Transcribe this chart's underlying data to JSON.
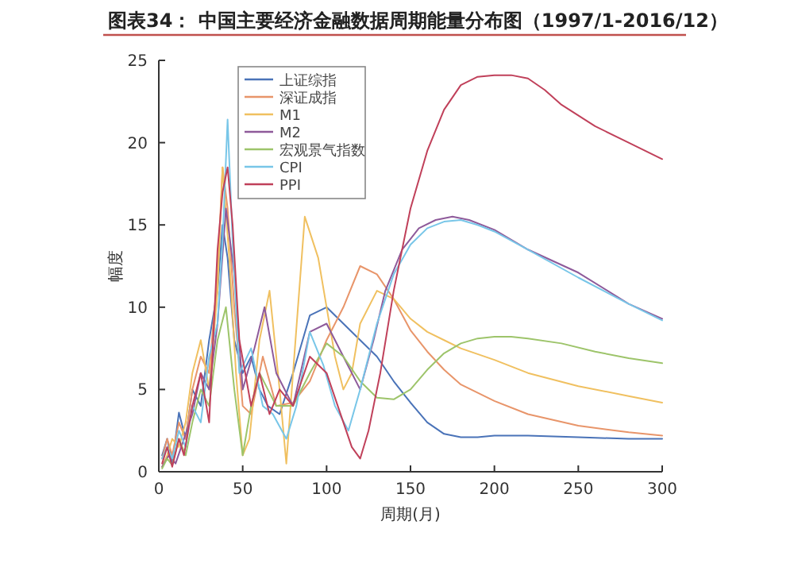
{
  "chart_data": {
    "type": "line",
    "title": "图表34：  中国主要经济金融数据周期能量分布图（1997/1-2016/12）",
    "xlabel": "周期(月)",
    "ylabel": "幅度",
    "xlim": [
      0,
      300
    ],
    "xticks": [
      0,
      50,
      100,
      150,
      200,
      250,
      300
    ],
    "ylim": [
      0,
      25
    ],
    "yticks": [
      0,
      5,
      10,
      15,
      20,
      25
    ],
    "grid": false,
    "legend": "top",
    "series": [
      {
        "name": "上证综指",
        "color": "#4a73b8",
        "x": [
          2,
          5,
          8,
          12,
          16,
          20,
          25,
          30,
          35,
          38,
          41,
          45,
          50,
          55,
          60,
          65,
          72,
          80,
          90,
          100,
          110,
          120,
          130,
          140,
          150,
          160,
          170,
          180,
          190,
          200,
          220,
          250,
          280,
          300
        ],
        "values": [
          1,
          2,
          0.5,
          3.6,
          2,
          5,
          4,
          8,
          11,
          15,
          13,
          8,
          6,
          7,
          5,
          4,
          3.5,
          6,
          9.5,
          10,
          9,
          8,
          7,
          5.5,
          4.2,
          3,
          2.3,
          2.1,
          2.1,
          2.2,
          2.2,
          2.1,
          2,
          2
        ]
      },
      {
        "name": "深证成指",
        "color": "#e8956a",
        "x": [
          2,
          5,
          8,
          12,
          16,
          20,
          25,
          30,
          35,
          38,
          41,
          45,
          50,
          55,
          62,
          70,
          80,
          90,
          100,
          110,
          120,
          130,
          140,
          150,
          160,
          170,
          180,
          200,
          220,
          250,
          280,
          300
        ],
        "values": [
          0.8,
          2,
          1,
          3,
          2,
          5,
          7,
          6,
          12,
          18.5,
          16,
          10,
          4,
          3.5,
          7,
          4,
          4.2,
          5.5,
          8,
          10,
          12.5,
          12,
          10.5,
          8.6,
          7.3,
          6.2,
          5.3,
          4.3,
          3.5,
          2.8,
          2.4,
          2.2
        ]
      },
      {
        "name": "M1",
        "color": "#f0c060",
        "x": [
          2,
          5,
          8,
          12,
          16,
          20,
          25,
          30,
          35,
          38,
          42,
          46,
          50,
          54,
          60,
          66,
          72,
          76,
          80,
          87,
          95,
          100,
          105,
          110,
          115,
          120,
          130,
          140,
          150,
          160,
          170,
          180,
          200,
          220,
          250,
          280,
          300
        ],
        "values": [
          0.3,
          1,
          2,
          1.5,
          3,
          6,
          8,
          5,
          11,
          18.5,
          13,
          6,
          1,
          2,
          8,
          11,
          5,
          0.5,
          6,
          15.5,
          13,
          10,
          7,
          5,
          6,
          9,
          11,
          10.5,
          9.3,
          8.5,
          8,
          7.5,
          6.8,
          6,
          5.2,
          4.6,
          4.2
        ]
      },
      {
        "name": "M2",
        "color": "#8e5a9a",
        "x": [
          2,
          6,
          10,
          15,
          20,
          25,
          30,
          35,
          40,
          45,
          50,
          57,
          63,
          70,
          80,
          90,
          100,
          110,
          120,
          128,
          135,
          145,
          155,
          165,
          175,
          185,
          200,
          220,
          250,
          280,
          300
        ],
        "values": [
          0.3,
          1,
          0.5,
          2,
          3.5,
          6,
          5,
          9,
          16,
          12,
          5,
          7.5,
          10,
          6,
          4,
          8.5,
          9,
          7,
          5,
          8,
          11,
          13.5,
          14.8,
          15.3,
          15.5,
          15.3,
          14.7,
          13.5,
          12.1,
          10.2,
          9.3
        ]
      },
      {
        "name": "宏观景气指数",
        "color": "#9dc46a",
        "x": [
          2,
          5,
          8,
          12,
          16,
          20,
          25,
          30,
          35,
          40,
          45,
          50,
          55,
          60,
          65,
          70,
          80,
          90,
          100,
          110,
          120,
          130,
          140,
          150,
          160,
          170,
          180,
          190,
          200,
          210,
          220,
          240,
          260,
          280,
          300
        ],
        "values": [
          0.2,
          0.8,
          0.4,
          2,
          1,
          3,
          5,
          4,
          8,
          10,
          5,
          1,
          4,
          6,
          5,
          4,
          4,
          6,
          7.8,
          7,
          5.5,
          4.5,
          4.4,
          5,
          6.2,
          7.2,
          7.8,
          8.1,
          8.2,
          8.2,
          8.1,
          7.8,
          7.3,
          6.9,
          6.6
        ]
      },
      {
        "name": "CPI",
        "color": "#78c6e8",
        "x": [
          2,
          5,
          8,
          12,
          16,
          20,
          25,
          30,
          35,
          38,
          41,
          44,
          48,
          55,
          62,
          68,
          76,
          82,
          90,
          98,
          105,
          113,
          120,
          130,
          140,
          150,
          160,
          170,
          180,
          190,
          200,
          220,
          250,
          280,
          300
        ],
        "values": [
          0.8,
          1.5,
          0.8,
          2.5,
          1.5,
          4,
          3,
          7,
          9,
          14,
          21.4,
          14,
          6,
          7.5,
          4,
          3.5,
          2,
          4,
          8.5,
          6.5,
          4,
          2.5,
          5,
          9,
          12,
          13.8,
          14.8,
          15.2,
          15.3,
          15,
          14.6,
          13.5,
          11.8,
          10.2,
          9.2
        ]
      },
      {
        "name": "PPI",
        "color": "#c0405a",
        "x": [
          2,
          5,
          8,
          12,
          15,
          20,
          25,
          30,
          35,
          38,
          41,
          44,
          48,
          55,
          60,
          66,
          72,
          80,
          90,
          100,
          110,
          115,
          120,
          125,
          132,
          140,
          150,
          160,
          170,
          180,
          190,
          200,
          210,
          220,
          230,
          240,
          260,
          280,
          300
        ],
        "values": [
          0.5,
          1.5,
          0.3,
          2,
          1,
          4,
          6,
          3,
          13.5,
          17,
          18.5,
          15,
          8,
          4,
          6,
          3.5,
          5,
          4,
          7,
          6,
          3,
          1.5,
          0.8,
          2.5,
          6,
          11,
          16,
          19.5,
          22,
          23.5,
          24,
          24.1,
          24.1,
          23.9,
          23.2,
          22.3,
          21,
          20,
          19
        ]
      }
    ]
  }
}
